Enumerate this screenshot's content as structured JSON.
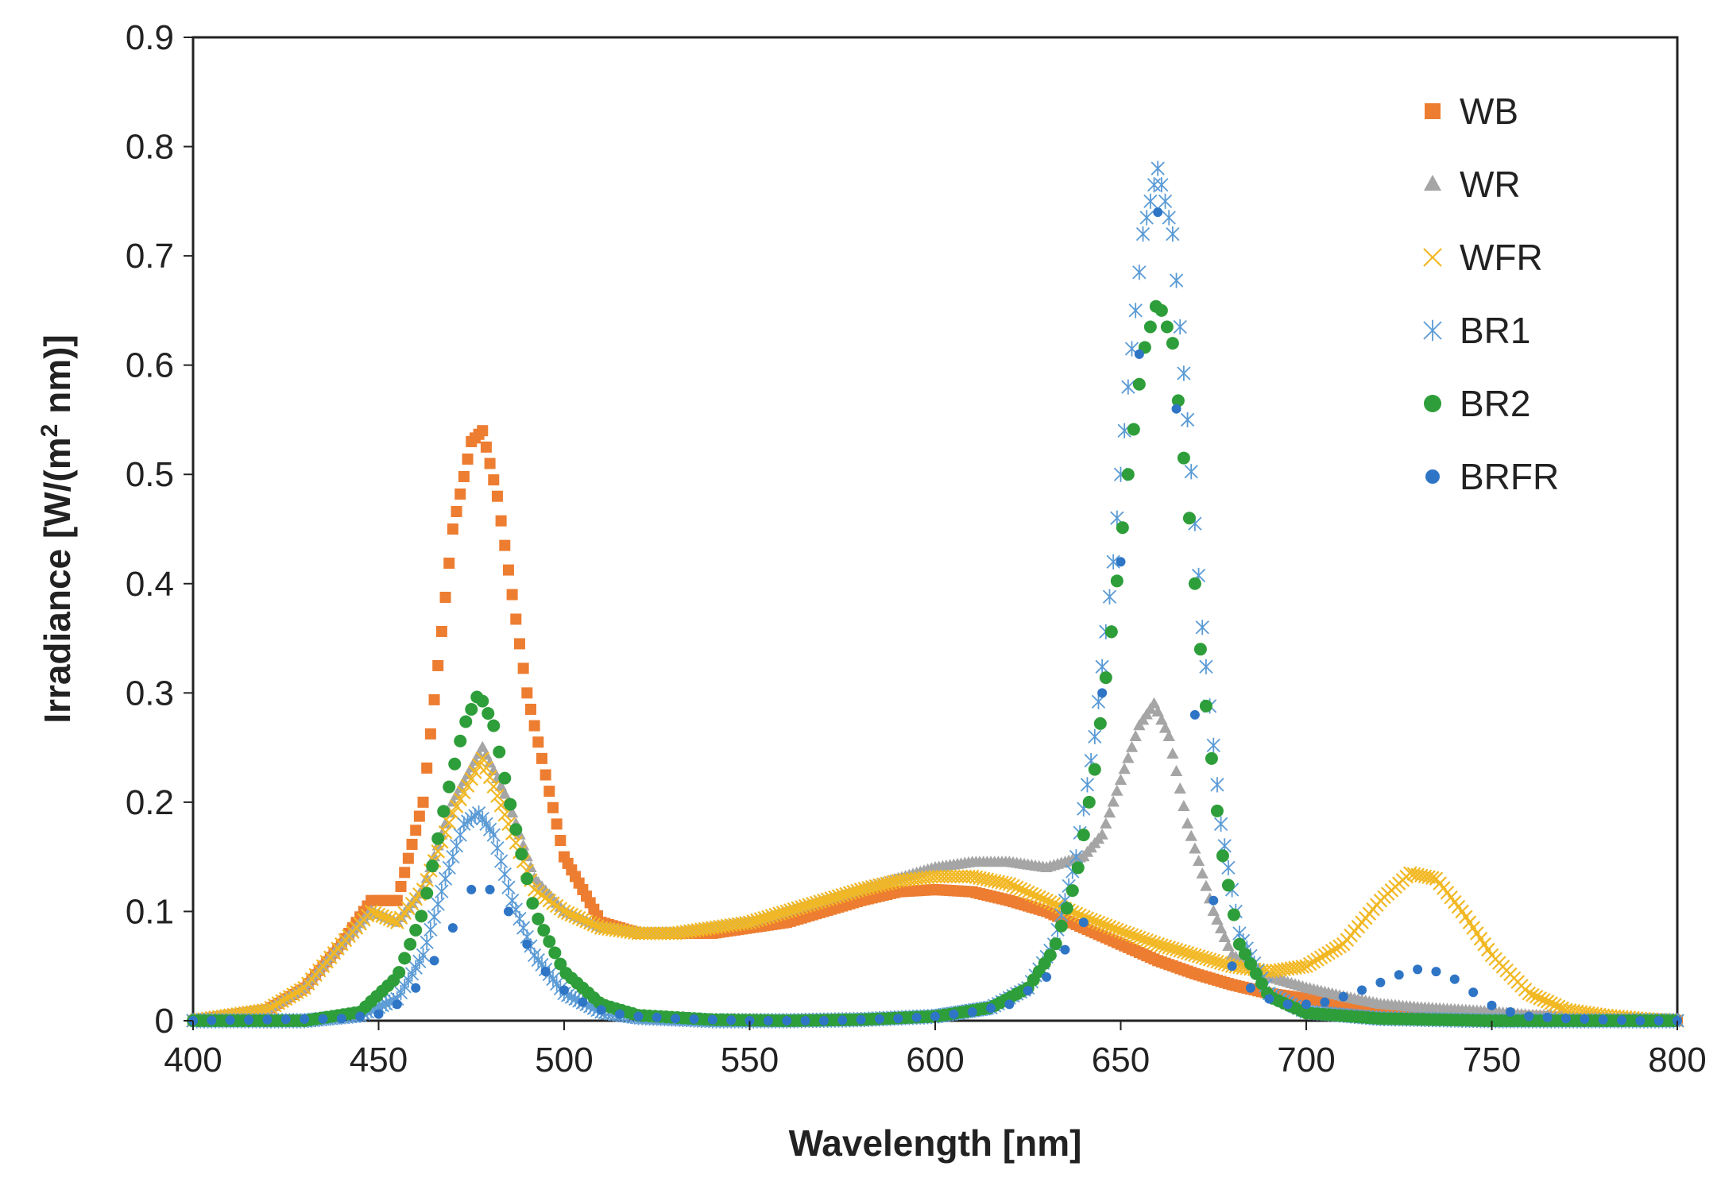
{
  "chart_data": {
    "type": "scatter",
    "title": "",
    "xlabel": "Wavelength [nm]",
    "ylabel_parts": {
      "prefix": "Irradiance [W/(m",
      "sup": "2",
      "suffix": " nm)]"
    },
    "xlim": [
      400,
      800
    ],
    "ylim": [
      0,
      0.9
    ],
    "xticks": [
      400,
      450,
      500,
      550,
      600,
      650,
      700,
      750,
      800
    ],
    "xtick_labels": [
      "400",
      "450",
      "500",
      "550",
      "600",
      "650",
      "700",
      "750",
      "800"
    ],
    "yticks": [
      0,
      0.1,
      0.2,
      0.3,
      0.4,
      0.5,
      0.6,
      0.7,
      0.8,
      0.9
    ],
    "ytick_labels": [
      "0",
      "0.1",
      "0.2",
      "0.3",
      "0.4",
      "0.5",
      "0.6",
      "0.7",
      "0.8",
      "0.9"
    ],
    "grid": false,
    "legend_position": "top-right",
    "series": [
      {
        "name": "WB",
        "marker": "square",
        "color": "#ED7D31",
        "x": [
          400,
          420,
          430,
          440,
          448,
          455,
          462,
          470,
          475,
          478,
          482,
          490,
          500,
          510,
          520,
          530,
          540,
          550,
          560,
          570,
          580,
          590,
          600,
          610,
          620,
          630,
          640,
          650,
          660,
          670,
          680,
          690,
          700,
          710,
          720,
          730,
          740,
          750,
          760,
          770,
          780,
          790,
          800
        ],
        "y": [
          0.0,
          0.01,
          0.03,
          0.07,
          0.11,
          0.11,
          0.2,
          0.45,
          0.53,
          0.54,
          0.48,
          0.3,
          0.15,
          0.09,
          0.08,
          0.08,
          0.08,
          0.085,
          0.09,
          0.1,
          0.11,
          0.118,
          0.12,
          0.118,
          0.11,
          0.1,
          0.085,
          0.07,
          0.055,
          0.043,
          0.033,
          0.025,
          0.02,
          0.015,
          0.01,
          0.008,
          0.006,
          0.005,
          0.004,
          0.003,
          0.002,
          0.001,
          0.0
        ]
      },
      {
        "name": "WR",
        "marker": "triangle",
        "color": "#A5A5A5",
        "x": [
          400,
          420,
          430,
          440,
          448,
          455,
          462,
          470,
          478,
          485,
          492,
          500,
          510,
          520,
          530,
          540,
          550,
          560,
          570,
          580,
          590,
          600,
          610,
          620,
          630,
          640,
          645,
          650,
          655,
          659,
          663,
          668,
          675,
          680,
          690,
          700,
          710,
          720,
          730,
          740,
          750,
          760,
          770,
          780,
          800
        ],
        "y": [
          0.0,
          0.01,
          0.03,
          0.07,
          0.1,
          0.09,
          0.12,
          0.2,
          0.25,
          0.2,
          0.13,
          0.1,
          0.085,
          0.08,
          0.08,
          0.085,
          0.09,
          0.1,
          0.11,
          0.12,
          0.13,
          0.14,
          0.145,
          0.145,
          0.14,
          0.15,
          0.17,
          0.22,
          0.27,
          0.29,
          0.26,
          0.18,
          0.1,
          0.06,
          0.04,
          0.03,
          0.022,
          0.015,
          0.012,
          0.01,
          0.008,
          0.005,
          0.004,
          0.003,
          0.0
        ]
      },
      {
        "name": "WFR",
        "marker": "x",
        "color": "#F2B824",
        "x": [
          400,
          420,
          430,
          440,
          448,
          455,
          462,
          470,
          478,
          485,
          492,
          500,
          510,
          520,
          530,
          540,
          550,
          560,
          570,
          580,
          590,
          600,
          610,
          620,
          630,
          640,
          650,
          660,
          670,
          680,
          690,
          700,
          710,
          720,
          728,
          735,
          742,
          750,
          760,
          770,
          780,
          790,
          800
        ],
        "y": [
          0.0,
          0.01,
          0.03,
          0.07,
          0.1,
          0.09,
          0.12,
          0.19,
          0.24,
          0.18,
          0.12,
          0.1,
          0.085,
          0.08,
          0.08,
          0.085,
          0.09,
          0.1,
          0.11,
          0.12,
          0.128,
          0.132,
          0.132,
          0.125,
          0.11,
          0.095,
          0.082,
          0.07,
          0.06,
          0.05,
          0.045,
          0.05,
          0.07,
          0.11,
          0.135,
          0.13,
          0.1,
          0.06,
          0.025,
          0.01,
          0.005,
          0.002,
          0.0
        ]
      },
      {
        "name": "BR1",
        "marker": "asterisk",
        "color": "#5B9BD5",
        "x": [
          400,
          430,
          445,
          455,
          462,
          468,
          473,
          477,
          481,
          486,
          492,
          500,
          510,
          520,
          540,
          560,
          580,
          600,
          615,
          625,
          632,
          638,
          643,
          648,
          652,
          656,
          660,
          664,
          668,
          672,
          677,
          682,
          690,
          700,
          720,
          750,
          800
        ],
        "y": [
          0.0,
          0.0,
          0.005,
          0.02,
          0.06,
          0.13,
          0.18,
          0.19,
          0.17,
          0.11,
          0.06,
          0.025,
          0.008,
          0.003,
          0.0,
          0.0,
          0.001,
          0.004,
          0.012,
          0.03,
          0.07,
          0.15,
          0.26,
          0.42,
          0.58,
          0.72,
          0.78,
          0.72,
          0.55,
          0.36,
          0.18,
          0.08,
          0.025,
          0.008,
          0.002,
          0.0,
          0.0
        ]
      },
      {
        "name": "BR2",
        "marker": "circle",
        "color": "#2E9E3A",
        "x": [
          400,
          430,
          445,
          455,
          462,
          468,
          473,
          477,
          481,
          486,
          492,
          500,
          510,
          520,
          540,
          560,
          580,
          600,
          615,
          625,
          632,
          638,
          643,
          648,
          652,
          656,
          660,
          664,
          668,
          672,
          677,
          682,
          690,
          700,
          720,
          750,
          800
        ],
        "y": [
          0.0,
          0.0,
          0.008,
          0.04,
          0.1,
          0.2,
          0.27,
          0.3,
          0.27,
          0.19,
          0.1,
          0.045,
          0.015,
          0.005,
          0.001,
          0.0,
          0.001,
          0.004,
          0.012,
          0.03,
          0.065,
          0.13,
          0.23,
          0.37,
          0.5,
          0.61,
          0.66,
          0.62,
          0.48,
          0.32,
          0.16,
          0.07,
          0.022,
          0.007,
          0.002,
          0.0,
          0.0
        ]
      },
      {
        "name": "BRFR",
        "marker": "dot",
        "color": "#2F75C6",
        "x": [
          400,
          440,
          450,
          455,
          460,
          465,
          470,
          475,
          480,
          485,
          490,
          495,
          500,
          505,
          510,
          515,
          520,
          530,
          540,
          550,
          560,
          570,
          580,
          590,
          600,
          610,
          620,
          630,
          640,
          645,
          650,
          655,
          660,
          665,
          670,
          675,
          680,
          685,
          690,
          695,
          700,
          705,
          710,
          715,
          720,
          725,
          730,
          735,
          740,
          745,
          750,
          755,
          760,
          770,
          780,
          790,
          800
        ],
        "y": [
          0.0,
          0.002,
          0.006,
          0.015,
          0.03,
          0.055,
          0.085,
          0.12,
          0.12,
          0.1,
          0.07,
          0.045,
          0.028,
          0.017,
          0.01,
          0.006,
          0.004,
          0.002,
          0.001,
          0.0,
          0.0,
          0.0,
          0.001,
          0.002,
          0.004,
          0.008,
          0.015,
          0.04,
          0.09,
          0.3,
          0.42,
          0.61,
          0.74,
          0.56,
          0.28,
          0.11,
          0.05,
          0.03,
          0.02,
          0.015,
          0.015,
          0.017,
          0.022,
          0.028,
          0.035,
          0.042,
          0.047,
          0.045,
          0.038,
          0.026,
          0.014,
          0.008,
          0.004,
          0.002,
          0.001,
          0.0,
          0.0
        ]
      }
    ]
  }
}
